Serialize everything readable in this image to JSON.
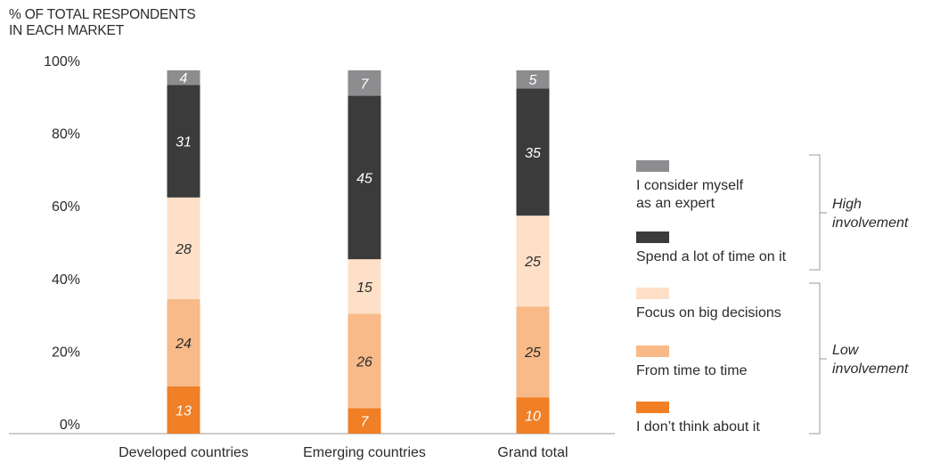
{
  "chart_data": {
    "type": "bar",
    "stacked": true,
    "ylabel_lines": [
      "% OF TOTAL RESPONDENTS",
      "IN EACH MARKET"
    ],
    "ylim": [
      0,
      100
    ],
    "yticks": [
      "0%",
      "20%",
      "40%",
      "60%",
      "80%",
      "100%"
    ],
    "ytick_values": [
      0,
      20,
      40,
      60,
      80,
      100
    ],
    "categories": [
      "Developed countries",
      "Emerging countries",
      "Grand total"
    ],
    "series": [
      {
        "name": "I don’t think about it",
        "values": [
          13,
          7,
          10
        ],
        "color": "#f07f26",
        "label_color": "#ffffff"
      },
      {
        "name": "From time to time",
        "values": [
          24,
          26,
          25
        ],
        "color": "#f8ba88",
        "label_color": "#2b2b2b"
      },
      {
        "name": "Focus on big decisions",
        "values": [
          28,
          15,
          25
        ],
        "color": "#fde0c7",
        "label_color": "#2b2b2b"
      },
      {
        "name": "Spend a lot of time on it",
        "values": [
          31,
          45,
          35
        ],
        "color": "#3b3b3b",
        "label_color": "#ffffff"
      },
      {
        "name": "I consider myself as an expert",
        "values": [
          4,
          7,
          5
        ],
        "color": "#8d8d8f",
        "label_color": "#ffffff"
      }
    ],
    "legend": {
      "placement": "right",
      "items": [
        {
          "lines": [
            "I consider myself",
            "as an expert"
          ],
          "color": "#8d8d8f"
        },
        {
          "lines": [
            "Spend a lot of time on it"
          ],
          "color": "#3b3b3b"
        },
        {
          "lines": [
            "Focus on big decisions"
          ],
          "color": "#fde0c7"
        },
        {
          "lines": [
            "From time to time"
          ],
          "color": "#f8ba88"
        },
        {
          "lines": [
            "I don’t think about it"
          ],
          "color": "#f07f26"
        }
      ],
      "groups": [
        {
          "label_lines": [
            "High",
            "involvement"
          ]
        },
        {
          "label_lines": [
            "Low",
            "involvement"
          ]
        }
      ]
    },
    "grid": false
  }
}
